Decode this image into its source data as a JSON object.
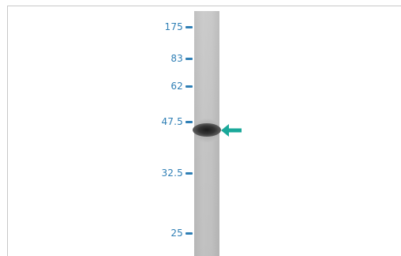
{
  "markers": [
    {
      "label": "175",
      "mw": 175
    },
    {
      "label": "83",
      "mw": 83
    },
    {
      "label": "62",
      "mw": 62
    },
    {
      "label": "47.5",
      "mw": 47.5
    },
    {
      "label": "32.5",
      "mw": 32.5
    },
    {
      "label": "25",
      "mw": 25
    }
  ],
  "colors": {
    "marker": "#2f7fb5",
    "arrow": "#1aa89a",
    "lane": "#c4c4c4",
    "band": "#222222"
  },
  "icons": {
    "band_pointer": "left-arrow-icon"
  }
}
